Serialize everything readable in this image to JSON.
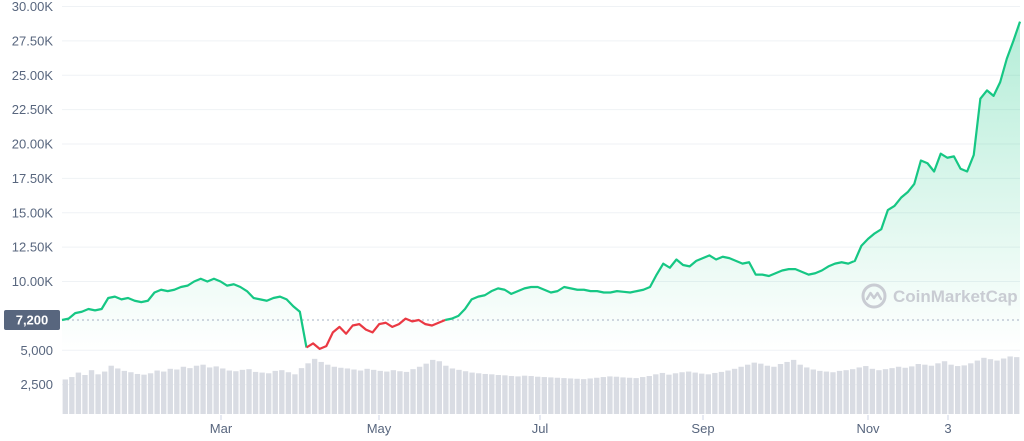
{
  "chart_data": {
    "type": "line",
    "title": "",
    "xlabel": "",
    "ylabel": "",
    "ylim": [
      2500,
      30000
    ],
    "y_ticks": [
      "30.00K",
      "27.50K",
      "25.00K",
      "22.50K",
      "20.00K",
      "17.50K",
      "15.00K",
      "12.50K",
      "10.00K",
      "5,000",
      "2,500"
    ],
    "y_tick_values": [
      30000,
      27500,
      25000,
      22500,
      20000,
      17500,
      15000,
      12500,
      10000,
      5000,
      2500
    ],
    "x_ticks": [
      "Mar",
      "May",
      "Jul",
      "Sep",
      "Nov",
      "3"
    ],
    "baseline": {
      "label": "7,200",
      "value": 7200,
      "style": "dotted"
    },
    "grid": true,
    "colors": {
      "up": "#16c784",
      "down": "#ea3943",
      "fill": "#16c784",
      "volume": "#d9dce3",
      "grid": "#eff2f5"
    },
    "series": [
      {
        "values": [
          7200,
          7300,
          7700,
          7800,
          8000,
          7900,
          8000,
          8800,
          8900,
          8700,
          8800,
          8600,
          8500,
          8600,
          9200,
          9400,
          9300,
          9400,
          9600,
          9700,
          10000,
          10200,
          10000,
          10200,
          10000,
          9700,
          9800,
          9600,
          9300,
          8800,
          8700,
          8600,
          8800,
          8900,
          8700,
          8200,
          7800,
          5200,
          5500,
          5100,
          5300,
          6300,
          6700,
          6200,
          6800,
          6900,
          6500,
          6300,
          6900,
          7000,
          6700,
          6900,
          7300,
          7100,
          7200,
          6900,
          6800,
          7000,
          7200,
          7300,
          7500,
          8000,
          8700,
          8900,
          9000,
          9300,
          9500,
          9400,
          9100,
          9300,
          9500,
          9600,
          9600,
          9400,
          9200,
          9300,
          9600,
          9500,
          9400,
          9400,
          9300,
          9300,
          9200,
          9200,
          9300,
          9250,
          9200,
          9300,
          9400,
          9600,
          10500,
          11300,
          11000,
          11600,
          11200,
          11100,
          11500,
          11700,
          11900,
          11600,
          11800,
          11700,
          11500,
          11300,
          11400,
          10500,
          10500,
          10400,
          10600,
          10800,
          10900,
          10900,
          10700,
          10500,
          10600,
          10800,
          11100,
          11300,
          11400,
          11300,
          11500,
          12600,
          13100,
          13500,
          13800,
          15200,
          15500,
          16100,
          16500,
          17100,
          18800,
          18600,
          18000,
          19300,
          19000,
          19100,
          18200,
          18000,
          19200,
          23300,
          23900,
          23500,
          24500,
          26200,
          27500,
          28900
        ]
      }
    ],
    "down_segment": {
      "from_index": 37,
      "to_index": 58
    },
    "volume_scale": 2500,
    "volume": [
      1.15,
      1.22,
      1.35,
      1.28,
      1.42,
      1.3,
      1.38,
      1.55,
      1.47,
      1.4,
      1.36,
      1.31,
      1.29,
      1.33,
      1.41,
      1.38,
      1.46,
      1.44,
      1.52,
      1.48,
      1.55,
      1.58,
      1.5,
      1.53,
      1.47,
      1.41,
      1.39,
      1.43,
      1.45,
      1.37,
      1.35,
      1.33,
      1.4,
      1.42,
      1.36,
      1.3,
      1.48,
      1.62,
      1.75,
      1.66,
      1.58,
      1.52,
      1.49,
      1.47,
      1.44,
      1.41,
      1.46,
      1.43,
      1.4,
      1.38,
      1.42,
      1.39,
      1.37,
      1.45,
      1.52,
      1.61,
      1.72,
      1.68,
      1.55,
      1.47,
      1.43,
      1.39,
      1.35,
      1.33,
      1.31,
      1.3,
      1.28,
      1.27,
      1.25,
      1.24,
      1.26,
      1.25,
      1.23,
      1.22,
      1.21,
      1.2,
      1.19,
      1.18,
      1.17,
      1.16,
      1.18,
      1.2,
      1.22,
      1.24,
      1.23,
      1.21,
      1.2,
      1.19,
      1.22,
      1.25,
      1.3,
      1.34,
      1.29,
      1.33,
      1.36,
      1.38,
      1.35,
      1.32,
      1.3,
      1.34,
      1.37,
      1.41,
      1.46,
      1.52,
      1.58,
      1.64,
      1.61,
      1.55,
      1.52,
      1.6,
      1.66,
      1.72,
      1.58,
      1.5,
      1.44,
      1.4,
      1.38,
      1.36,
      1.4,
      1.42,
      1.45,
      1.5,
      1.54,
      1.46,
      1.42,
      1.45,
      1.48,
      1.52,
      1.49,
      1.53,
      1.6,
      1.58,
      1.55,
      1.62,
      1.68,
      1.58,
      1.54,
      1.56,
      1.62,
      1.7,
      1.78,
      1.74,
      1.7,
      1.76,
      1.82,
      1.8
    ]
  },
  "watermark": {
    "text": "CoinMarketCap",
    "icon": "coinmarketcap-logo-icon"
  }
}
